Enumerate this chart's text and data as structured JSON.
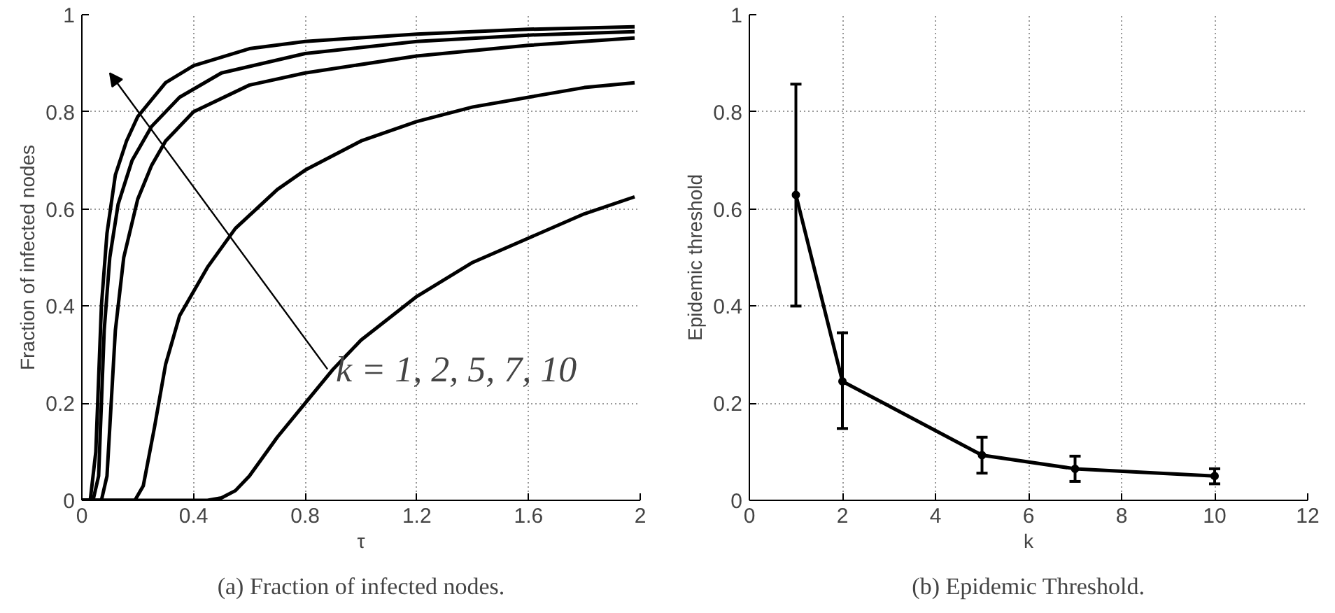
{
  "chart_data": [
    {
      "type": "line",
      "xlabel": "τ",
      "ylabel": "Fraction of infected nodes",
      "xlim": [
        0,
        2
      ],
      "ylim": [
        0,
        1
      ],
      "xticks": [
        0,
        0.4,
        0.8,
        1.2,
        1.6,
        2
      ],
      "yticks": [
        0,
        0.2,
        0.4,
        0.6,
        0.8,
        1
      ],
      "grid": true,
      "line_style": "solid",
      "series": [
        {
          "color": "#000000",
          "x": [
            0,
            0.03,
            0.05,
            0.07,
            0.09,
            0.12,
            0.16,
            0.2,
            0.3,
            0.4,
            0.6,
            0.8,
            1.2,
            1.6,
            1.98
          ],
          "values": [
            0,
            0,
            0.1,
            0.4,
            0.55,
            0.67,
            0.74,
            0.79,
            0.86,
            0.895,
            0.93,
            0.945,
            0.96,
            0.97,
            0.975
          ]
        },
        {
          "color": "#000000",
          "x": [
            0,
            0.04,
            0.06,
            0.08,
            0.1,
            0.13,
            0.18,
            0.25,
            0.35,
            0.5,
            0.8,
            1.2,
            1.6,
            1.98
          ],
          "values": [
            0,
            0,
            0.05,
            0.35,
            0.5,
            0.61,
            0.7,
            0.77,
            0.83,
            0.88,
            0.92,
            0.945,
            0.958,
            0.965
          ]
        },
        {
          "color": "#000000",
          "x": [
            0,
            0.07,
            0.09,
            0.12,
            0.15,
            0.2,
            0.25,
            0.3,
            0.4,
            0.6,
            0.8,
            1.2,
            1.6,
            1.98
          ],
          "values": [
            0,
            0,
            0.05,
            0.35,
            0.5,
            0.62,
            0.69,
            0.74,
            0.8,
            0.855,
            0.88,
            0.915,
            0.937,
            0.952
          ]
        },
        {
          "color": "#000000",
          "x": [
            0,
            0.19,
            0.22,
            0.26,
            0.3,
            0.35,
            0.45,
            0.55,
            0.7,
            0.8,
            1.0,
            1.2,
            1.4,
            1.6,
            1.8,
            1.98
          ],
          "values": [
            0,
            0,
            0.03,
            0.15,
            0.28,
            0.38,
            0.48,
            0.56,
            0.64,
            0.68,
            0.74,
            0.78,
            0.81,
            0.83,
            0.85,
            0.86
          ]
        },
        {
          "color": "#000000",
          "x": [
            0,
            0.45,
            0.5,
            0.55,
            0.6,
            0.7,
            0.8,
            0.9,
            1.0,
            1.2,
            1.4,
            1.6,
            1.8,
            1.98
          ],
          "values": [
            0,
            0,
            0.005,
            0.02,
            0.05,
            0.13,
            0.2,
            0.27,
            0.33,
            0.42,
            0.49,
            0.54,
            0.59,
            0.625
          ]
        }
      ],
      "annotations": [
        {
          "text": "k = 1, 2, 5, 7, 10",
          "x": 0.88,
          "y": 0.27
        },
        "(a) Fraction of infected nodes."
      ]
    },
    {
      "type": "line",
      "xlabel": "k",
      "ylabel": "Epidemic threshold",
      "xlim": [
        0,
        12
      ],
      "ylim": [
        0,
        1
      ],
      "xticks": [
        0,
        2,
        4,
        6,
        8,
        10,
        12
      ],
      "yticks": [
        0,
        0.2,
        0.4,
        0.6,
        0.8,
        1
      ],
      "grid": true,
      "marker": "circle",
      "line_style": "solid",
      "series": [
        {
          "color": "#000000",
          "x": [
            1,
            2,
            5,
            7,
            10
          ],
          "values": [
            0.629,
            0.245,
            0.093,
            0.065,
            0.05
          ],
          "errors": [
            [
              0.4,
              0.857
            ],
            [
              0.148,
              0.345
            ],
            [
              0.056,
              0.13
            ],
            [
              0.039,
              0.091
            ],
            [
              0.034,
              0.065
            ]
          ]
        }
      ],
      "annotations": [
        "(b) Epidemic Threshold."
      ]
    }
  ]
}
